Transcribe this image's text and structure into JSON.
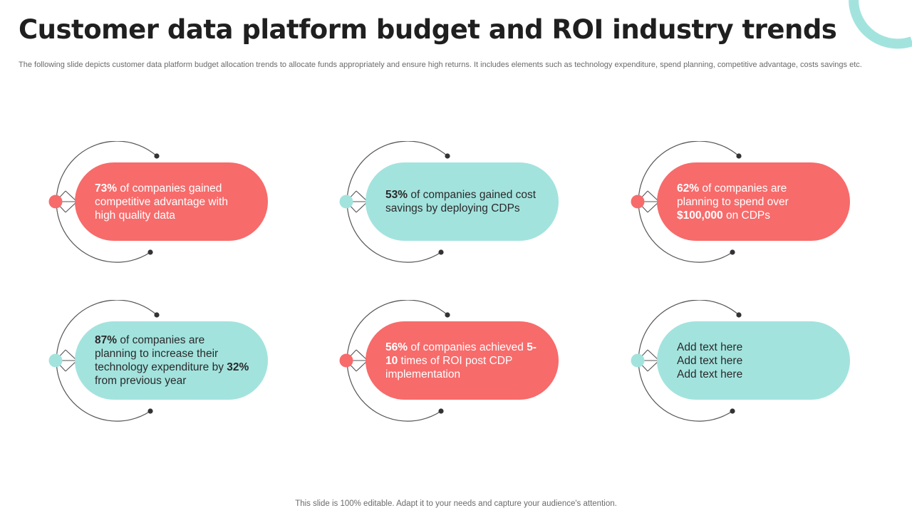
{
  "slide": {
    "title": "Customer data platform budget and ROI industry trends",
    "subtitle": "The following slide depicts customer data platform budget allocation trends to allocate funds appropriately and ensure high returns. It includes elements such as technology expenditure, spend planning, competitive advantage, costs savings etc.",
    "footer": "This slide is 100% editable. Adapt it to your needs and capture your audience's attention."
  },
  "colors": {
    "red": "#f76b6b",
    "teal": "#a3e3de",
    "arc": "#555555",
    "corner_arc": "#a3e3de"
  },
  "cards": [
    {
      "theme": "red",
      "parts": [
        {
          "text": "73%",
          "bold": true
        },
        {
          "text": " of companies gained competitive advantage with high quality data",
          "bold": false
        }
      ]
    },
    {
      "theme": "teal",
      "parts": [
        {
          "text": "53%",
          "bold": true
        },
        {
          "text": " of companies gained cost savings by deploying CDPs",
          "bold": false
        }
      ]
    },
    {
      "theme": "red",
      "parts": [
        {
          "text": "62%",
          "bold": true
        },
        {
          "text": " of companies are planning to spend over ",
          "bold": false
        },
        {
          "text": "$100,000",
          "bold": true
        },
        {
          "text": " on CDPs",
          "bold": false
        }
      ]
    },
    {
      "theme": "teal",
      "parts": [
        {
          "text": "87%",
          "bold": true
        },
        {
          "text": " of companies are planning to increase their technology expenditure  by ",
          "bold": false
        },
        {
          "text": "32%",
          "bold": true
        },
        {
          "text": " from previous year",
          "bold": false
        }
      ]
    },
    {
      "theme": "red",
      "parts": [
        {
          "text": "56%",
          "bold": true
        },
        {
          "text": " of companies achieved ",
          "bold": false
        },
        {
          "text": "5-10",
          "bold": true
        },
        {
          "text": " times of ROI post CDP implementation",
          "bold": false
        }
      ]
    },
    {
      "theme": "teal",
      "lines": [
        "Add text here",
        "Add text here",
        "Add text here"
      ]
    }
  ]
}
